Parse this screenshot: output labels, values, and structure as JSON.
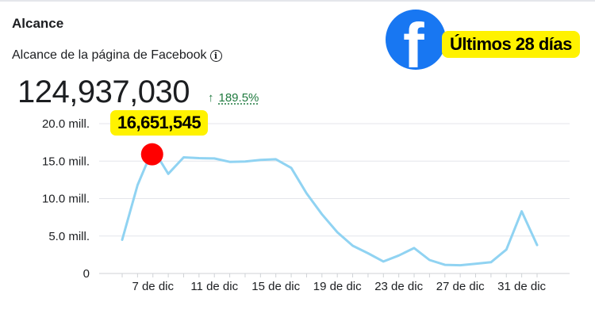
{
  "section_title": "Alcance",
  "subtitle": "Alcance de la página de Facebook",
  "total_value": "124,937,030",
  "growth": {
    "arrow": "↑",
    "value": "189.5%"
  },
  "period_badge": "Últimos 28 días",
  "peak_badge": "16,651,545",
  "colors": {
    "line": "#90d3f2",
    "peak_marker": "#ff0000",
    "badge": "#fff200",
    "facebook": "#1877f2",
    "growth": "#1f7a3f"
  },
  "chart_data": {
    "type": "line",
    "title": "",
    "xlabel": "",
    "ylabel": "",
    "ylim": [
      0,
      20.0
    ],
    "y_ticks": [
      {
        "value": 0,
        "label": "0"
      },
      {
        "value": 5,
        "label": "5.0 mill."
      },
      {
        "value": 10,
        "label": "10.0 mill."
      },
      {
        "value": 15,
        "label": "15.0 mill."
      },
      {
        "value": 20,
        "label": "20.0 mill."
      }
    ],
    "x_tick_labels": [
      "7 de dic",
      "11 de dic",
      "15 de dic",
      "19 de dic",
      "23 de dic",
      "27 de dic",
      "31 de dic"
    ],
    "x_tick_days": [
      2,
      6,
      10,
      14,
      18,
      22,
      26
    ],
    "grid": true,
    "series": [
      {
        "values": [
          4.5,
          11.8,
          16.65,
          13.3,
          15.5,
          15.4,
          15.35,
          14.9,
          14.95,
          15.15,
          15.25,
          14.1,
          10.7,
          7.9,
          5.5,
          3.7,
          2.7,
          1.6,
          2.4,
          3.4,
          1.8,
          1.15,
          1.1,
          1.3,
          1.5,
          3.2,
          8.3,
          3.8
        ]
      }
    ],
    "peak_index": 2
  }
}
